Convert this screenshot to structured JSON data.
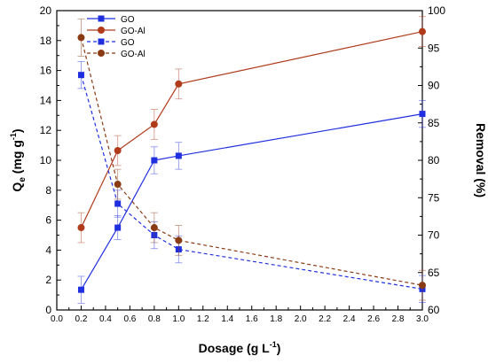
{
  "chart_data": {
    "type": "line",
    "xlabel": "Dosage (g L",
    "xlabel_sup": "-1",
    "xlabel_end": ")",
    "ylabel_left_main": "Q",
    "ylabel_left_sub": "e",
    "ylabel_left_rest": " (mg g",
    "ylabel_left_sup": "-1",
    "ylabel_left_end": ")",
    "ylabel_right": "Removal (%)",
    "xlim": [
      0.0,
      3.0
    ],
    "ylim_left": [
      0,
      20
    ],
    "ylim_right": [
      60,
      100
    ],
    "x_ticks": [
      "0.0",
      "0.2",
      "0.4",
      "0.6",
      "0.8",
      "1.0",
      "1.2",
      "1.4",
      "1.6",
      "1.8",
      "2.0",
      "2.2",
      "2.4",
      "2.6",
      "2.8",
      "3.0"
    ],
    "y_left_ticks": [
      "0",
      "2",
      "4",
      "6",
      "8",
      "10",
      "12",
      "14",
      "16",
      "18",
      "20"
    ],
    "y_right_ticks": [
      "60",
      "65",
      "70",
      "75",
      "80",
      "85",
      "90",
      "95",
      "100"
    ],
    "legend_position": "top-left",
    "series": [
      {
        "name": "GO",
        "axis": "left",
        "style": "solid",
        "marker": "square",
        "color": "#1f2fe0",
        "x": [
          0.2,
          0.5,
          0.8,
          1.0,
          3.0
        ],
        "y": [
          1.35,
          5.5,
          10.0,
          10.3,
          13.1
        ],
        "err": [
          0.9,
          0.8,
          0.9,
          0.9,
          0.9
        ]
      },
      {
        "name": "GO-Al",
        "axis": "left",
        "style": "solid",
        "marker": "circle",
        "color": "#b03a1a",
        "x": [
          0.2,
          0.5,
          0.8,
          1.0,
          3.0
        ],
        "y": [
          5.5,
          10.65,
          12.4,
          15.1,
          18.6
        ],
        "err": [
          1.0,
          1.0,
          1.0,
          1.0,
          1.0
        ]
      },
      {
        "name": "GO",
        "axis": "right",
        "style": "dashed",
        "marker": "square",
        "color": "#1f2fe0",
        "x": [
          0.2,
          0.5,
          0.8,
          1.0,
          3.0
        ],
        "y": [
          91.4,
          74.2,
          70.0,
          68.1,
          62.8
        ],
        "err": [
          1.8,
          1.8,
          1.8,
          1.8,
          1.8
        ]
      },
      {
        "name": "GO-Al",
        "axis": "right",
        "style": "dashed",
        "marker": "circle",
        "color": "#8b3b14",
        "x": [
          0.2,
          0.5,
          0.8,
          1.0,
          3.0
        ],
        "y": [
          96.4,
          76.8,
          71.0,
          69.3,
          63.3
        ],
        "err": [
          2.5,
          2.0,
          2.0,
          2.0,
          2.0
        ]
      }
    ]
  }
}
